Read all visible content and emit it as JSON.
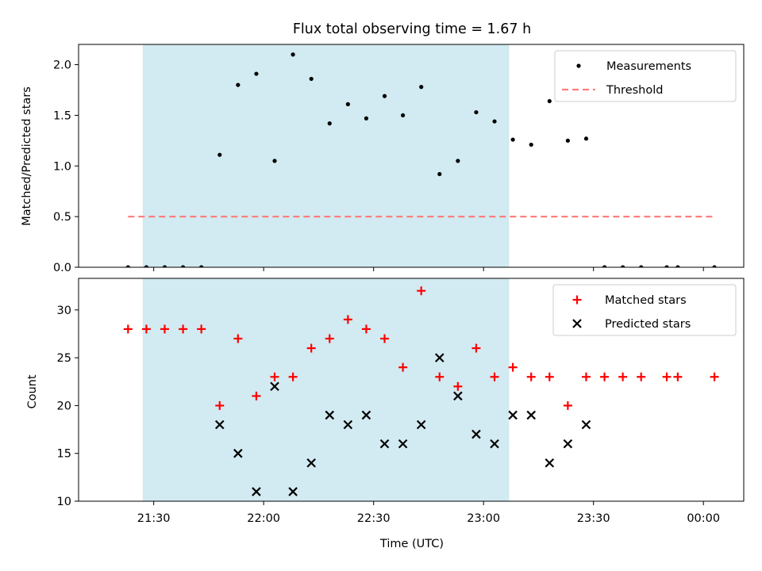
{
  "chart_data": {
    "type": "scatter",
    "title": "Flux total observing time = 1.67 h",
    "xlabel": "Time (UTC)",
    "x_unit": "minutes after 00:00 on the first night (axis labels show clock time)",
    "xlim": [
      1269.5,
      1451
    ],
    "x_ticks": [
      {
        "value": 1290,
        "label": "21:30"
      },
      {
        "value": 1320,
        "label": "22:00"
      },
      {
        "value": 1350,
        "label": "22:30"
      },
      {
        "value": 1380,
        "label": "23:00"
      },
      {
        "value": 1410,
        "label": "23:30"
      },
      {
        "value": 1440,
        "label": "00:00"
      }
    ],
    "shaded_interval": {
      "from": 1287,
      "to": 1387,
      "color": "#add8e6"
    },
    "panels": [
      {
        "ylabel": "Matched/Predicted stars",
        "ylim": [
          0,
          2.2
        ],
        "y_ticks": [
          "0.0",
          "0.5",
          "1.0",
          "1.5",
          "2.0"
        ],
        "y_tick_values": [
          0,
          0.5,
          1.0,
          1.5,
          2.0
        ],
        "legend": {
          "placement": "top-right",
          "entries": [
            "Measurements",
            "Threshold"
          ]
        },
        "series": [
          {
            "name": "Measurements",
            "marker": "dot",
            "color": "#000000",
            "points": [
              [
                1283,
                0
              ],
              [
                1288,
                0
              ],
              [
                1293,
                0
              ],
              [
                1298,
                0
              ],
              [
                1303,
                0
              ],
              [
                1308,
                1.11
              ],
              [
                1313,
                1.8
              ],
              [
                1318,
                1.91
              ],
              [
                1323,
                1.05
              ],
              [
                1328,
                2.1
              ],
              [
                1333,
                1.86
              ],
              [
                1338,
                1.42
              ],
              [
                1343,
                1.61
              ],
              [
                1348,
                1.47
              ],
              [
                1353,
                1.69
              ],
              [
                1358,
                1.5
              ],
              [
                1363,
                1.78
              ],
              [
                1368,
                0.92
              ],
              [
                1373,
                1.05
              ],
              [
                1378,
                1.53
              ],
              [
                1383,
                1.44
              ],
              [
                1388,
                1.26
              ],
              [
                1393,
                1.21
              ],
              [
                1398,
                1.64
              ],
              [
                1403,
                1.25
              ],
              [
                1408,
                1.27
              ],
              [
                1413,
                0
              ],
              [
                1418,
                0
              ],
              [
                1423,
                0
              ],
              [
                1430,
                0
              ],
              [
                1433,
                0
              ],
              [
                1443,
                0
              ]
            ]
          },
          {
            "name": "Threshold",
            "style": "dashed-line",
            "color": "#ff7f7f",
            "points": [
              [
                1283,
                0.5
              ],
              [
                1443,
                0.5
              ]
            ]
          }
        ]
      },
      {
        "ylabel": "Count",
        "ylim": [
          10,
          33.3
        ],
        "y_ticks": [
          "10",
          "15",
          "20",
          "25",
          "30"
        ],
        "y_tick_values": [
          10,
          15,
          20,
          25,
          30
        ],
        "legend": {
          "placement": "top-right",
          "entries": [
            "Matched stars",
            "Predicted stars"
          ]
        },
        "series": [
          {
            "name": "Matched stars",
            "marker": "plus",
            "color": "#ff0000",
            "points": [
              [
                1283,
                28
              ],
              [
                1288,
                28
              ],
              [
                1293,
                28
              ],
              [
                1298,
                28
              ],
              [
                1303,
                28
              ],
              [
                1308,
                20
              ],
              [
                1313,
                27
              ],
              [
                1318,
                21
              ],
              [
                1323,
                23
              ],
              [
                1328,
                23
              ],
              [
                1333,
                26
              ],
              [
                1338,
                27
              ],
              [
                1343,
                29
              ],
              [
                1348,
                28
              ],
              [
                1353,
                27
              ],
              [
                1358,
                24
              ],
              [
                1363,
                32
              ],
              [
                1368,
                23
              ],
              [
                1373,
                22
              ],
              [
                1378,
                26
              ],
              [
                1383,
                23
              ],
              [
                1388,
                24
              ],
              [
                1393,
                23
              ],
              [
                1398,
                23
              ],
              [
                1403,
                20
              ],
              [
                1408,
                23
              ],
              [
                1413,
                23
              ],
              [
                1418,
                23
              ],
              [
                1423,
                23
              ],
              [
                1430,
                23
              ],
              [
                1433,
                23
              ],
              [
                1443,
                23
              ]
            ]
          },
          {
            "name": "Predicted stars",
            "marker": "x",
            "color": "#000000",
            "points": [
              [
                1308,
                18
              ],
              [
                1313,
                15
              ],
              [
                1318,
                11
              ],
              [
                1323,
                22
              ],
              [
                1328,
                11
              ],
              [
                1333,
                14
              ],
              [
                1338,
                19
              ],
              [
                1343,
                18
              ],
              [
                1348,
                19
              ],
              [
                1353,
                16
              ],
              [
                1358,
                16
              ],
              [
                1363,
                18
              ],
              [
                1368,
                25
              ],
              [
                1373,
                21
              ],
              [
                1378,
                17
              ],
              [
                1383,
                16
              ],
              [
                1388,
                19
              ],
              [
                1393,
                19
              ],
              [
                1398,
                14
              ],
              [
                1403,
                16
              ],
              [
                1408,
                18
              ]
            ]
          }
        ]
      }
    ]
  }
}
